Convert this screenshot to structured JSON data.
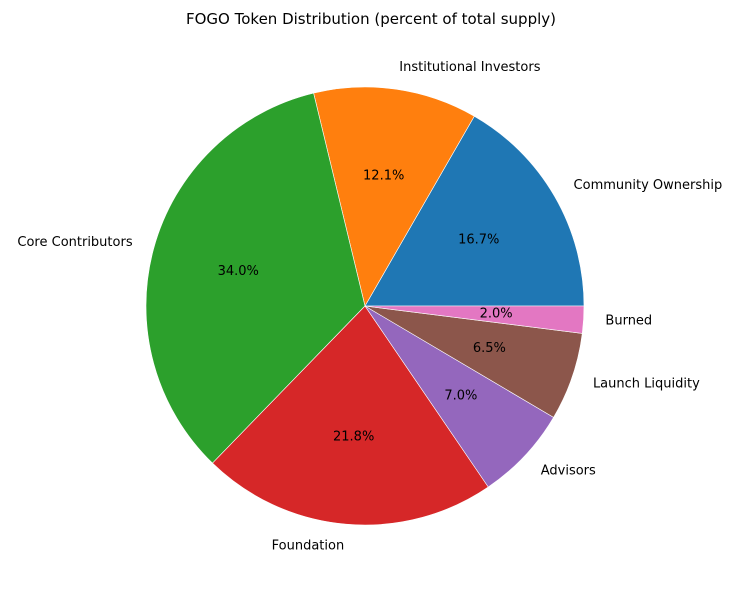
{
  "chart_data": {
    "type": "pie",
    "title": "FOGO Token Distribution (percent of total supply)",
    "categories": [
      "Community Ownership",
      "Institutional Investors",
      "Core Contributors",
      "Foundation",
      "Advisors",
      "Launch Liquidity",
      "Burned"
    ],
    "values": [
      16.7,
      12.1,
      34.0,
      21.8,
      7.0,
      6.5,
      2.0
    ],
    "value_labels": [
      "16.7%",
      "12.1%",
      "34.0%",
      "21.8%",
      "7.0%",
      "6.5%",
      "2.0%"
    ],
    "colors": [
      "#1f77b4",
      "#ff7f0e",
      "#2ca02c",
      "#d62728",
      "#9467bd",
      "#8c564b",
      "#e377c2"
    ],
    "start_angle_deg": 0,
    "direction": "counterclockwise"
  }
}
